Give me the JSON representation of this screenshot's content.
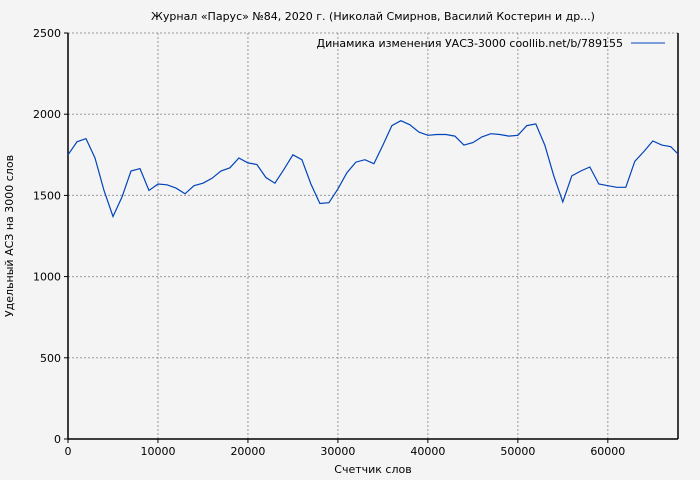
{
  "chart_data": {
    "type": "line",
    "title": "Журнал «Парус» №84, 2020 г. (Николай Смирнов, Василий Костерин и др...)",
    "xlabel": "Счетчик слов",
    "ylabel": "Удельный АСЗ на 3000 слов",
    "xlim": [
      0,
      67800
    ],
    "ylim": [
      0,
      2500
    ],
    "xticks": [
      0,
      10000,
      20000,
      30000,
      40000,
      50000,
      60000
    ],
    "yticks": [
      0,
      500,
      1000,
      1500,
      2000,
      2500
    ],
    "grid": true,
    "legend_position": "top-right",
    "line_color": "#0044bb",
    "series": [
      {
        "name": "Динамика изменения УАСЗ-3000 coollib.net/b/789155",
        "x": [
          0,
          1000,
          2000,
          3000,
          4000,
          5000,
          6000,
          7000,
          8000,
          9000,
          10000,
          11000,
          12000,
          13000,
          14000,
          15000,
          16000,
          17000,
          18000,
          19000,
          20000,
          21000,
          22000,
          23000,
          24000,
          25000,
          26000,
          27000,
          28000,
          29000,
          30000,
          31000,
          32000,
          33000,
          34000,
          35000,
          36000,
          37000,
          38000,
          39000,
          40000,
          41000,
          42000,
          43000,
          44000,
          45000,
          46000,
          47000,
          48000,
          49000,
          50000,
          51000,
          52000,
          53000,
          54000,
          55000,
          56000,
          57000,
          58000,
          59000,
          60000,
          61000,
          62000,
          63000,
          64000,
          65000,
          66000,
          67000,
          67800
        ],
        "y": [
          1750,
          1830,
          1850,
          1730,
          1530,
          1370,
          1490,
          1650,
          1665,
          1530,
          1570,
          1565,
          1545,
          1510,
          1560,
          1575,
          1605,
          1650,
          1670,
          1730,
          1700,
          1690,
          1610,
          1575,
          1660,
          1750,
          1720,
          1570,
          1450,
          1455,
          1540,
          1640,
          1705,
          1720,
          1695,
          1810,
          1930,
          1960,
          1935,
          1890,
          1870,
          1875,
          1875,
          1865,
          1810,
          1825,
          1860,
          1880,
          1875,
          1865,
          1870,
          1930,
          1940,
          1810,
          1620,
          1460,
          1620,
          1650,
          1675,
          1570,
          1560,
          1550,
          1550,
          1710,
          1770,
          1835,
          1810,
          1800,
          1755
        ]
      }
    ]
  }
}
